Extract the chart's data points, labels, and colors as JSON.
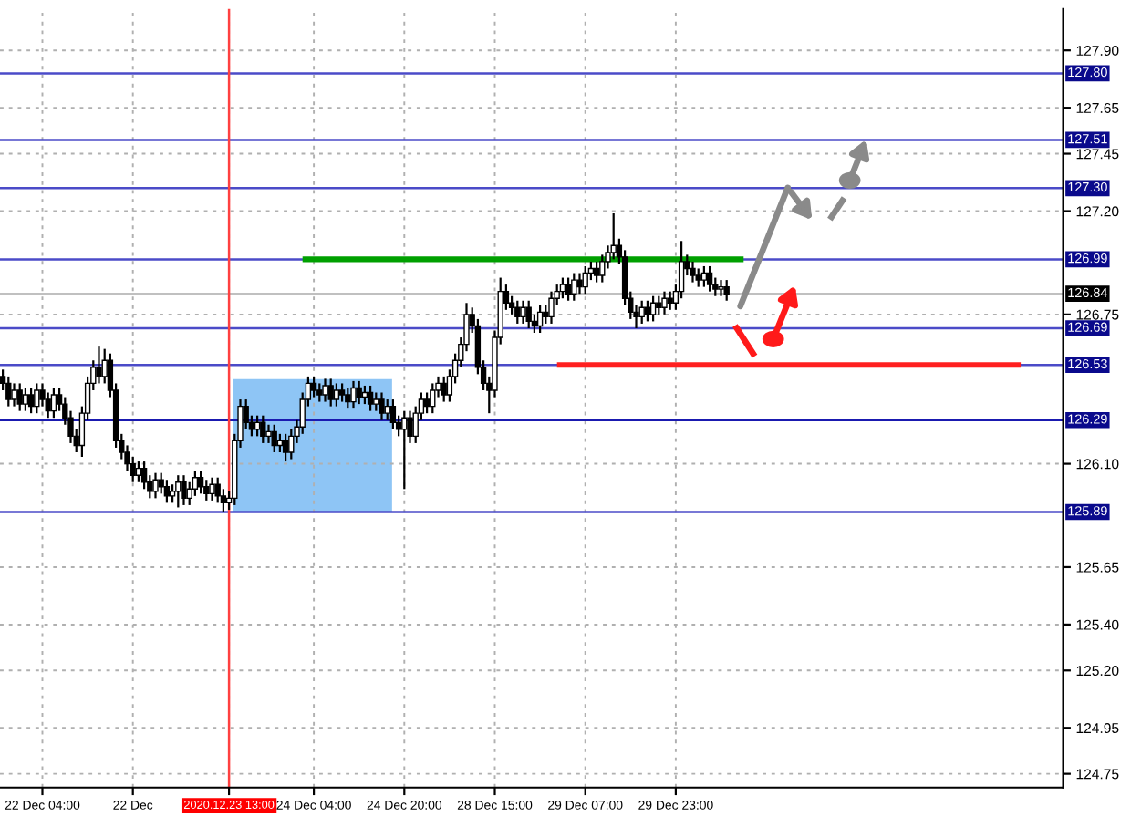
{
  "chart_data": {
    "type": "candlestick",
    "categories": [
      null,
      null,
      null,
      null,
      null,
      null,
      null,
      "22 Dec 04:00",
      null,
      null,
      null,
      null,
      null,
      null,
      null,
      null,
      null,
      null,
      null,
      null,
      null,
      null,
      null,
      "22 Dec",
      null,
      null,
      null,
      null,
      null,
      null,
      null,
      null,
      null,
      null,
      null,
      null,
      null,
      null,
      null,
      null,
      "2020.12.23 13:00",
      null,
      null,
      null,
      null,
      null,
      null,
      null,
      null,
      null,
      null,
      null,
      null,
      null,
      null,
      "24 Dec 04:00",
      null,
      null,
      null,
      null,
      null,
      null,
      null,
      null,
      null,
      null,
      null,
      null,
      null,
      null,
      null,
      "24 Dec 20:00",
      null,
      null,
      null,
      null,
      null,
      null,
      null,
      null,
      null,
      null,
      null,
      null,
      null,
      null,
      null,
      "28 Dec 15:00",
      null,
      null,
      null,
      null,
      null,
      null,
      null,
      null,
      null,
      null,
      null,
      null,
      null,
      null,
      null,
      "29 Dec 07:00",
      null,
      null,
      null,
      null,
      null,
      null,
      null,
      null,
      null,
      null,
      null,
      null,
      null,
      null,
      null,
      "29 Dec 23:00",
      null,
      null,
      null,
      null,
      null,
      null,
      null,
      null,
      null,
      null,
      null,
      null,
      null,
      null,
      null,
      null,
      null,
      null,
      null,
      null,
      null,
      null,
      null,
      null,
      null,
      null,
      null,
      null,
      null,
      null,
      null,
      null,
      null,
      null,
      null,
      null,
      null,
      null,
      null,
      null,
      null,
      null,
      null,
      null,
      null,
      null,
      null,
      null,
      null,
      null,
      null,
      null,
      null,
      null,
      null,
      null,
      null,
      null,
      null,
      null,
      null,
      null,
      null,
      null,
      null,
      null,
      null,
      null
    ],
    "ohlc": [
      [
        126.48,
        126.51,
        126.42,
        126.45
      ],
      [
        126.45,
        126.48,
        126.35,
        126.38
      ],
      [
        126.38,
        126.45,
        126.35,
        126.42
      ],
      [
        126.42,
        126.45,
        126.33,
        126.36
      ],
      [
        126.36,
        126.43,
        126.33,
        126.4
      ],
      [
        126.4,
        126.43,
        126.32,
        126.35
      ],
      [
        126.35,
        126.45,
        126.32,
        126.42
      ],
      [
        126.42,
        126.45,
        126.35,
        126.38
      ],
      [
        126.38,
        126.41,
        126.3,
        126.33
      ],
      [
        126.33,
        126.43,
        126.3,
        126.4
      ],
      [
        126.4,
        126.43,
        126.33,
        126.36
      ],
      [
        126.36,
        126.39,
        126.27,
        126.3
      ],
      [
        126.3,
        126.33,
        126.19,
        126.22
      ],
      [
        126.22,
        126.25,
        126.15,
        126.18
      ],
      [
        126.18,
        126.35,
        126.13,
        126.32
      ],
      [
        126.32,
        126.48,
        126.29,
        126.45
      ],
      [
        126.45,
        126.55,
        126.42,
        126.52
      ],
      [
        126.52,
        126.61,
        126.45,
        126.48
      ],
      [
        126.48,
        126.6,
        126.45,
        126.55
      ],
      [
        126.55,
        126.58,
        126.39,
        126.42
      ],
      [
        126.42,
        126.45,
        126.17,
        126.2
      ],
      [
        126.2,
        126.23,
        126.12,
        126.15
      ],
      [
        126.15,
        126.18,
        126.07,
        126.1
      ],
      [
        126.1,
        126.13,
        126.02,
        126.05
      ],
      [
        126.05,
        126.11,
        126.02,
        126.08
      ],
      [
        126.08,
        126.11,
        125.99,
        126.02
      ],
      [
        126.02,
        126.05,
        125.95,
        125.98
      ],
      [
        125.98,
        126.06,
        125.95,
        126.03
      ],
      [
        126.03,
        126.06,
        125.97,
        126.0
      ],
      [
        126.0,
        126.03,
        125.93,
        125.96
      ],
      [
        125.96,
        126.01,
        125.93,
        125.98
      ],
      [
        125.98,
        126.05,
        125.91,
        126.02
      ],
      [
        126.02,
        126.05,
        125.92,
        125.95
      ],
      [
        125.95,
        126.02,
        125.92,
        125.99
      ],
      [
        125.99,
        126.07,
        125.96,
        126.04
      ],
      [
        126.04,
        126.07,
        125.97,
        126.0
      ],
      [
        126.0,
        126.03,
        125.94,
        125.97
      ],
      [
        125.97,
        126.04,
        125.94,
        126.01
      ],
      [
        126.01,
        126.04,
        125.93,
        125.96
      ],
      [
        125.96,
        125.99,
        125.89,
        125.93
      ],
      [
        125.93,
        125.98,
        125.9,
        125.95
      ],
      [
        125.95,
        126.23,
        125.92,
        126.2
      ],
      [
        126.2,
        126.38,
        126.17,
        126.35
      ],
      [
        126.35,
        126.38,
        126.25,
        126.28
      ],
      [
        126.28,
        126.31,
        126.22,
        126.25
      ],
      [
        126.25,
        126.31,
        126.22,
        126.28
      ],
      [
        126.28,
        126.31,
        126.19,
        126.22
      ],
      [
        126.22,
        126.27,
        126.19,
        126.24
      ],
      [
        126.24,
        126.27,
        126.15,
        126.18
      ],
      [
        126.18,
        126.23,
        126.15,
        126.2
      ],
      [
        126.2,
        126.23,
        126.11,
        126.15
      ],
      [
        126.15,
        126.25,
        126.12,
        126.22
      ],
      [
        126.22,
        126.29,
        126.19,
        126.26
      ],
      [
        126.26,
        126.41,
        126.23,
        126.38
      ],
      [
        126.38,
        126.48,
        126.35,
        126.45
      ],
      [
        126.45,
        126.48,
        126.39,
        126.42
      ],
      [
        126.42,
        126.45,
        126.37,
        126.4
      ],
      [
        126.4,
        126.47,
        126.37,
        126.44
      ],
      [
        126.44,
        126.47,
        126.35,
        126.38
      ],
      [
        126.38,
        126.45,
        126.35,
        126.42
      ],
      [
        126.42,
        126.45,
        126.37,
        126.4
      ],
      [
        126.4,
        126.43,
        126.34,
        126.37
      ],
      [
        126.37,
        126.46,
        126.34,
        126.43
      ],
      [
        126.43,
        126.46,
        126.36,
        126.39
      ],
      [
        126.39,
        126.44,
        126.36,
        126.41
      ],
      [
        126.41,
        126.44,
        126.33,
        126.36
      ],
      [
        126.36,
        126.41,
        126.33,
        126.38
      ],
      [
        126.38,
        126.41,
        126.29,
        126.32
      ],
      [
        126.32,
        126.38,
        126.29,
        126.35
      ],
      [
        126.35,
        126.38,
        126.25,
        126.28
      ],
      [
        126.28,
        126.31,
        126.22,
        126.25
      ],
      [
        126.25,
        126.33,
        125.99,
        126.3
      ],
      [
        126.3,
        126.33,
        126.19,
        126.22
      ],
      [
        126.22,
        126.35,
        126.19,
        126.32
      ],
      [
        126.32,
        126.41,
        126.29,
        126.38
      ],
      [
        126.38,
        126.41,
        126.32,
        126.35
      ],
      [
        126.35,
        126.45,
        126.32,
        126.42
      ],
      [
        126.42,
        126.48,
        126.39,
        126.45
      ],
      [
        126.45,
        126.48,
        126.37,
        126.4
      ],
      [
        126.4,
        126.51,
        126.37,
        126.48
      ],
      [
        126.48,
        126.58,
        126.45,
        126.55
      ],
      [
        126.55,
        126.65,
        126.52,
        126.62
      ],
      [
        126.62,
        126.8,
        126.59,
        126.75
      ],
      [
        126.75,
        126.78,
        126.67,
        126.7
      ],
      [
        126.7,
        126.73,
        126.49,
        126.52
      ],
      [
        126.52,
        126.55,
        126.42,
        126.45
      ],
      [
        126.45,
        126.48,
        126.32,
        126.42
      ],
      [
        126.42,
        126.68,
        126.39,
        126.65
      ],
      [
        126.65,
        126.91,
        126.62,
        126.85
      ],
      [
        126.85,
        126.88,
        126.77,
        126.8
      ],
      [
        126.8,
        126.83,
        126.75,
        126.78
      ],
      [
        126.78,
        126.81,
        126.71,
        126.74
      ],
      [
        126.74,
        126.81,
        126.71,
        126.78
      ],
      [
        126.78,
        126.81,
        126.69,
        126.72
      ],
      [
        126.72,
        126.75,
        126.67,
        126.7
      ],
      [
        126.7,
        126.79,
        126.67,
        126.76
      ],
      [
        126.76,
        126.79,
        126.71,
        126.74
      ],
      [
        126.74,
        126.85,
        126.71,
        126.82
      ],
      [
        126.82,
        126.88,
        126.79,
        126.85
      ],
      [
        126.85,
        126.91,
        126.82,
        126.88
      ],
      [
        126.88,
        126.91,
        126.81,
        126.84
      ],
      [
        126.84,
        126.93,
        126.81,
        126.9
      ],
      [
        126.9,
        126.93,
        126.84,
        126.87
      ],
      [
        126.87,
        126.96,
        126.84,
        126.93
      ],
      [
        126.93,
        126.98,
        126.9,
        126.95
      ],
      [
        126.95,
        126.98,
        126.89,
        126.92
      ],
      [
        126.92,
        127.01,
        126.89,
        126.98
      ],
      [
        126.98,
        127.05,
        126.95,
        127.02
      ],
      [
        127.02,
        127.19,
        126.99,
        127.05
      ],
      [
        127.05,
        127.08,
        126.97,
        127.0
      ],
      [
        127.0,
        127.03,
        126.79,
        126.82
      ],
      [
        126.82,
        126.85,
        126.73,
        126.76
      ],
      [
        126.76,
        126.79,
        126.69,
        126.74
      ],
      [
        126.74,
        126.81,
        126.71,
        126.78
      ],
      [
        126.78,
        126.81,
        126.72,
        126.75
      ],
      [
        126.75,
        126.83,
        126.72,
        126.8
      ],
      [
        126.8,
        126.83,
        126.75,
        126.78
      ],
      [
        126.78,
        126.85,
        126.75,
        126.82
      ],
      [
        126.82,
        126.85,
        126.77,
        126.8
      ],
      [
        126.8,
        126.88,
        126.77,
        126.85
      ],
      [
        126.85,
        127.07,
        126.82,
        126.98
      ],
      [
        126.98,
        127.01,
        126.92,
        126.95
      ],
      [
        126.95,
        126.98,
        126.89,
        126.92
      ],
      [
        126.92,
        126.95,
        126.87,
        126.9
      ],
      [
        126.9,
        126.96,
        126.87,
        126.93
      ],
      [
        126.93,
        126.96,
        126.85,
        126.88
      ],
      [
        126.88,
        126.91,
        126.83,
        126.86
      ],
      [
        126.86,
        126.9,
        126.83,
        126.87
      ],
      [
        126.87,
        126.9,
        126.81,
        126.84
      ],
      null,
      null,
      null,
      null,
      null,
      null,
      null,
      null,
      null,
      null,
      null,
      null,
      null,
      null,
      null,
      null,
      null,
      null,
      null,
      null,
      null,
      null,
      null,
      null,
      null,
      null,
      null,
      null,
      null,
      null,
      null,
      null,
      null,
      null,
      null,
      null,
      null,
      null,
      null,
      null,
      null,
      null,
      null,
      null,
      null,
      null,
      null,
      null,
      null,
      null,
      null,
      null,
      null,
      null,
      null,
      null,
      null,
      null,
      null
    ],
    "series": [
      {
        "type": "line",
        "color": "#00a000",
        "values": [
          null,
          null,
          null,
          null,
          null,
          null,
          null,
          null,
          null,
          null,
          null,
          null,
          null,
          null,
          null,
          null,
          null,
          null,
          null,
          null,
          null,
          null,
          null,
          null,
          null,
          null,
          null,
          null,
          null,
          null,
          null,
          null,
          null,
          null,
          null,
          null,
          null,
          null,
          null,
          null,
          null,
          null,
          null,
          null,
          null,
          null,
          null,
          null,
          null,
          null,
          null,
          null,
          null,
          126.99,
          126.99,
          126.99,
          126.99,
          126.99,
          126.99,
          126.99,
          126.99,
          126.99,
          126.99,
          126.99,
          126.99,
          126.99,
          126.99,
          126.99,
          126.99,
          126.99,
          126.99,
          126.99,
          126.99,
          126.99,
          126.99,
          126.99,
          126.99,
          126.99,
          126.99,
          126.99,
          126.99,
          126.99,
          126.99,
          126.99,
          126.99,
          126.99,
          126.99,
          126.99,
          126.99,
          126.99,
          126.99,
          126.99,
          126.99,
          126.99,
          126.99,
          126.99,
          126.99,
          126.99,
          126.99,
          126.99,
          126.99,
          126.99,
          126.99,
          126.99,
          126.99,
          126.99,
          126.99,
          126.99,
          126.99,
          126.99,
          126.99,
          126.99,
          126.99,
          126.99,
          126.99,
          126.99,
          126.99,
          126.99,
          126.99,
          126.99,
          126.99,
          126.99,
          126.99,
          126.99,
          126.99,
          126.99,
          126.99,
          126.99,
          126.99,
          126.99,
          126.99,
          126.99,
          null,
          null,
          null,
          null,
          null,
          null,
          null,
          null,
          null,
          null,
          null,
          null,
          null,
          null,
          null,
          null,
          null,
          null,
          null,
          null,
          null,
          null,
          null,
          null,
          null,
          null,
          null,
          null,
          null,
          null,
          null,
          null,
          null,
          null,
          null,
          null,
          null,
          null,
          null,
          null,
          null,
          null,
          null,
          null,
          null,
          null,
          null,
          null,
          null,
          null,
          null,
          null,
          null,
          null,
          null,
          null
        ]
      },
      {
        "type": "line",
        "color": "#ff2020",
        "values": [
          null,
          null,
          null,
          null,
          null,
          null,
          null,
          null,
          null,
          null,
          null,
          null,
          null,
          null,
          null,
          null,
          null,
          null,
          null,
          null,
          null,
          null,
          null,
          null,
          null,
          null,
          null,
          null,
          null,
          null,
          null,
          null,
          null,
          null,
          null,
          null,
          null,
          null,
          null,
          null,
          null,
          null,
          null,
          null,
          null,
          null,
          null,
          null,
          null,
          null,
          null,
          null,
          null,
          null,
          null,
          null,
          null,
          null,
          null,
          null,
          null,
          null,
          null,
          null,
          null,
          null,
          null,
          null,
          null,
          null,
          null,
          null,
          null,
          null,
          null,
          null,
          null,
          null,
          null,
          null,
          null,
          null,
          null,
          null,
          null,
          null,
          null,
          null,
          null,
          null,
          null,
          null,
          null,
          null,
          null,
          null,
          null,
          null,
          126.53,
          126.53,
          126.53,
          126.53,
          126.53,
          126.53,
          126.53,
          126.53,
          126.53,
          126.53,
          126.53,
          126.53,
          126.53,
          126.53,
          126.53,
          126.53,
          126.53,
          126.53,
          126.53,
          126.53,
          126.53,
          126.53,
          126.53,
          126.53,
          126.53,
          126.53,
          126.53,
          126.53,
          126.53,
          126.53,
          126.53,
          126.53,
          126.53,
          126.53,
          126.53,
          126.53,
          126.53,
          126.53,
          126.53,
          126.53,
          126.53,
          126.53,
          126.53,
          126.53,
          126.53,
          126.53,
          126.53,
          126.53,
          126.53,
          126.53,
          126.53,
          126.53,
          126.53,
          126.53,
          126.53,
          126.53,
          126.53,
          126.53,
          126.53,
          126.53,
          126.53,
          126.53,
          126.53,
          126.53,
          126.53,
          126.53,
          126.53,
          126.53,
          126.53,
          126.53,
          126.53,
          126.53,
          126.53,
          126.53,
          126.53,
          126.53,
          126.53,
          126.53,
          126.53,
          126.53,
          126.53,
          126.53,
          126.53,
          null,
          null,
          null,
          null,
          null,
          null,
          null
        ]
      }
    ],
    "ylim": [
      124.69,
      128.08
    ],
    "yticks": [
      {
        "value": 127.9,
        "label": "127.90"
      },
      127.65,
      127.45,
      {
        "value": 127.2,
        "label": "127.20"
      },
      126.75,
      {
        "value": 126.1,
        "label": "126.10"
      },
      125.65,
      {
        "value": 125.4,
        "label": "125.40"
      },
      {
        "value": 125.2,
        "label": "125.20"
      },
      124.95,
      124.75
    ],
    "ref_lines": [
      {
        "axis": "y",
        "value": 127.8,
        "label": "127.80",
        "color": "#4b4bc8"
      },
      {
        "axis": "y",
        "value": 127.51,
        "label": "127.51",
        "color": "#4b4bc8"
      },
      {
        "axis": "y",
        "value": 127.3,
        "label": "127.30",
        "color": "#4b4bc8"
      },
      {
        "axis": "y",
        "value": 126.99,
        "label": "126.99",
        "color": "#4b4bc8"
      },
      {
        "axis": "y",
        "value": 126.84,
        "label": "126.84",
        "color": "#c0c0c0"
      },
      {
        "axis": "y",
        "value": 126.69,
        "label": "126.69",
        "color": "#4b4bc8"
      },
      {
        "axis": "y",
        "value": 126.53,
        "label": "126.53",
        "color": "#4b4bc8"
      },
      {
        "axis": "y",
        "value": 126.29,
        "label": "126.29",
        "color": "#1a1ab0"
      },
      {
        "axis": "y",
        "value": 125.89,
        "label": "125.89",
        "color": "#4b4bc8"
      },
      {
        "axis": "x",
        "value": "2020.12.23 13:00",
        "color": "#ff4040"
      }
    ],
    "grid": true
  }
}
